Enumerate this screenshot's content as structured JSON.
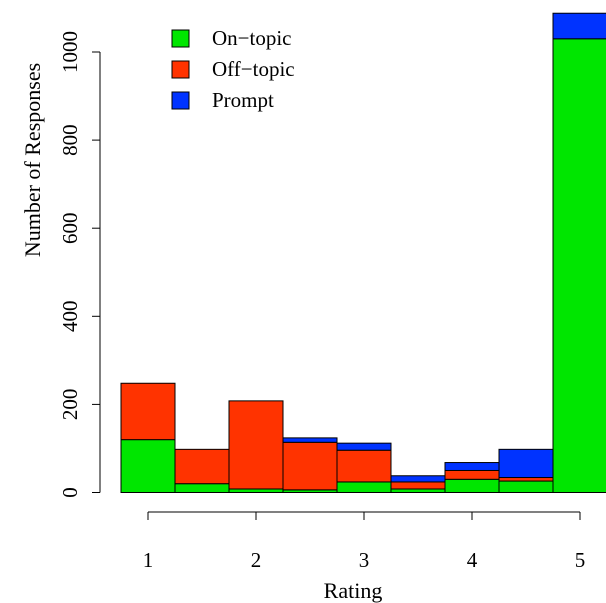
{
  "chart_data": {
    "type": "bar",
    "stacked": true,
    "title": "",
    "xlabel": "Rating",
    "ylabel": "Number of Responses",
    "ylim": [
      0,
      1100
    ],
    "xlim": [
      1,
      5
    ],
    "x_ticks": [
      "1",
      "2",
      "3",
      "4",
      "5"
    ],
    "y_ticks": [
      "0",
      "200",
      "400",
      "600",
      "800",
      "1000"
    ],
    "grid": false,
    "legend_position": "top-left",
    "bin_edges": [
      0.75,
      1.25,
      1.75,
      2.25,
      2.75,
      3.25,
      3.75,
      4.25,
      4.75,
      5.25
    ],
    "series": [
      {
        "name": "On−topic",
        "color": "#00e600",
        "values": [
          120,
          20,
          8,
          6,
          24,
          8,
          30,
          26,
          1030
        ]
      },
      {
        "name": "Off−topic",
        "color": "#ff3300",
        "values": [
          128,
          78,
          200,
          108,
          72,
          16,
          20,
          8,
          0
        ]
      },
      {
        "name": "Prompt",
        "color": "#0033ff",
        "values": [
          0,
          0,
          0,
          10,
          16,
          14,
          18,
          64,
          58
        ]
      }
    ]
  }
}
